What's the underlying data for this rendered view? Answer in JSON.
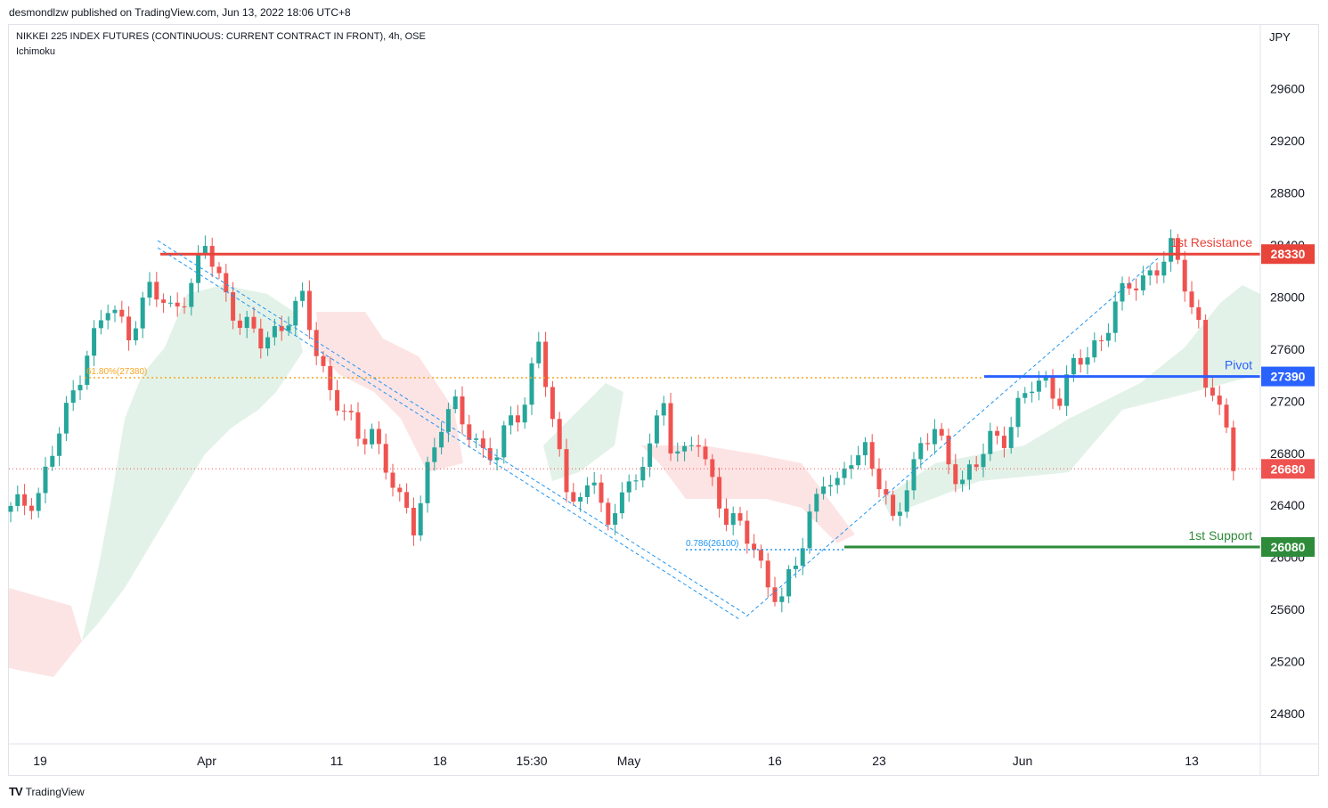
{
  "header": {
    "caption": "desmondlzw published on TradingView.com, Jun 13, 2022 18:06 UTC+8",
    "symbol": "NIKKEI 225 INDEX FUTURES (CONTINUOUS: CURRENT CONTRACT IN FRONT), 4h, OSE",
    "indicator": "Ichimoku",
    "currency": "JPY"
  },
  "footer": {
    "brand": "TradingView",
    "logo": "TV"
  },
  "colors": {
    "up": "#26a69a",
    "down": "#ef5350",
    "resistance": "#e8443a",
    "pivot": "#2962ff",
    "support": "#2e8b3a",
    "fib": "#f5a623",
    "trend": "#2196f3",
    "cloud_green": "#e3f2e8",
    "cloud_red": "#fde4e4",
    "current_price": "#ef5350"
  },
  "chart_data": {
    "type": "candlestick",
    "price_axis": {
      "ticks": [
        29600,
        29200,
        28800,
        28400,
        28000,
        27600,
        27200,
        26800,
        26400,
        26000,
        25600,
        25200,
        24800
      ],
      "range": [
        24600,
        30100
      ]
    },
    "time_axis": {
      "labels": [
        "19",
        "Apr",
        "11",
        "18",
        "15:30",
        "May",
        "16",
        "23",
        "Jun",
        "13"
      ]
    },
    "levels": [
      {
        "name": "1st Resistance",
        "value": 28330,
        "label": "28330"
      },
      {
        "name": "Pivot",
        "value": 27390,
        "label": "27390"
      },
      {
        "name": "1st Support",
        "value": 26080,
        "label": "26080"
      }
    ],
    "current_price": {
      "value": 26680,
      "label": "26680"
    },
    "fib_labels": [
      {
        "text": "61.80%(27380)",
        "value": 27380
      },
      {
        "text": "0.786(26100)",
        "value": 26100
      }
    ],
    "close_path": [
      [
        0,
        26350
      ],
      [
        4,
        26500
      ],
      [
        8,
        27100
      ],
      [
        11,
        27600
      ],
      [
        14,
        27900
      ],
      [
        17,
        27750
      ],
      [
        20,
        28050
      ],
      [
        23,
        27900
      ],
      [
        26,
        28100
      ],
      [
        28,
        28380
      ],
      [
        30,
        28150
      ],
      [
        33,
        27800
      ],
      [
        36,
        27650
      ],
      [
        39,
        27800
      ],
      [
        42,
        27950
      ],
      [
        44,
        27600
      ],
      [
        46,
        27300
      ],
      [
        48,
        27100
      ],
      [
        50,
        26900
      ],
      [
        52,
        27000
      ],
      [
        54,
        26700
      ],
      [
        56,
        26400
      ],
      [
        58,
        26250
      ],
      [
        60,
        26700
      ],
      [
        62,
        27000
      ],
      [
        64,
        27150
      ],
      [
        66,
        27000
      ],
      [
        68,
        26800
      ],
      [
        70,
        26750
      ],
      [
        72,
        27100
      ],
      [
        74,
        27200
      ],
      [
        76,
        27650
      ],
      [
        78,
        27000
      ],
      [
        80,
        26600
      ],
      [
        82,
        26400
      ],
      [
        84,
        26600
      ],
      [
        86,
        26200
      ],
      [
        88,
        26600
      ],
      [
        90,
        26500
      ],
      [
        92,
        26900
      ],
      [
        94,
        27200
      ],
      [
        95,
        26900
      ],
      [
        97,
        26750
      ],
      [
        99,
        26900
      ],
      [
        101,
        26600
      ],
      [
        103,
        26300
      ],
      [
        105,
        26200
      ],
      [
        107,
        26100
      ],
      [
        109,
        25800
      ],
      [
        111,
        25650
      ],
      [
        113,
        25950
      ],
      [
        115,
        26350
      ],
      [
        117,
        26600
      ],
      [
        119,
        26500
      ],
      [
        121,
        26800
      ],
      [
        123,
        26850
      ],
      [
        125,
        26550
      ],
      [
        127,
        26250
      ],
      [
        129,
        26600
      ],
      [
        131,
        26850
      ],
      [
        133,
        26950
      ],
      [
        135,
        26750
      ],
      [
        137,
        26600
      ],
      [
        139,
        26700
      ],
      [
        141,
        26900
      ],
      [
        143,
        26950
      ],
      [
        145,
        27150
      ],
      [
        147,
        27300
      ],
      [
        149,
        27350
      ],
      [
        151,
        27250
      ],
      [
        153,
        27450
      ],
      [
        155,
        27550
      ],
      [
        157,
        27700
      ],
      [
        159,
        27950
      ],
      [
        161,
        28050
      ],
      [
        163,
        28150
      ],
      [
        165,
        28250
      ],
      [
        167,
        28350
      ],
      [
        169,
        28100
      ],
      [
        171,
        27800
      ],
      [
        172,
        27350
      ],
      [
        173,
        27300
      ],
      [
        175,
        26900
      ],
      [
        176,
        26700
      ]
    ]
  }
}
